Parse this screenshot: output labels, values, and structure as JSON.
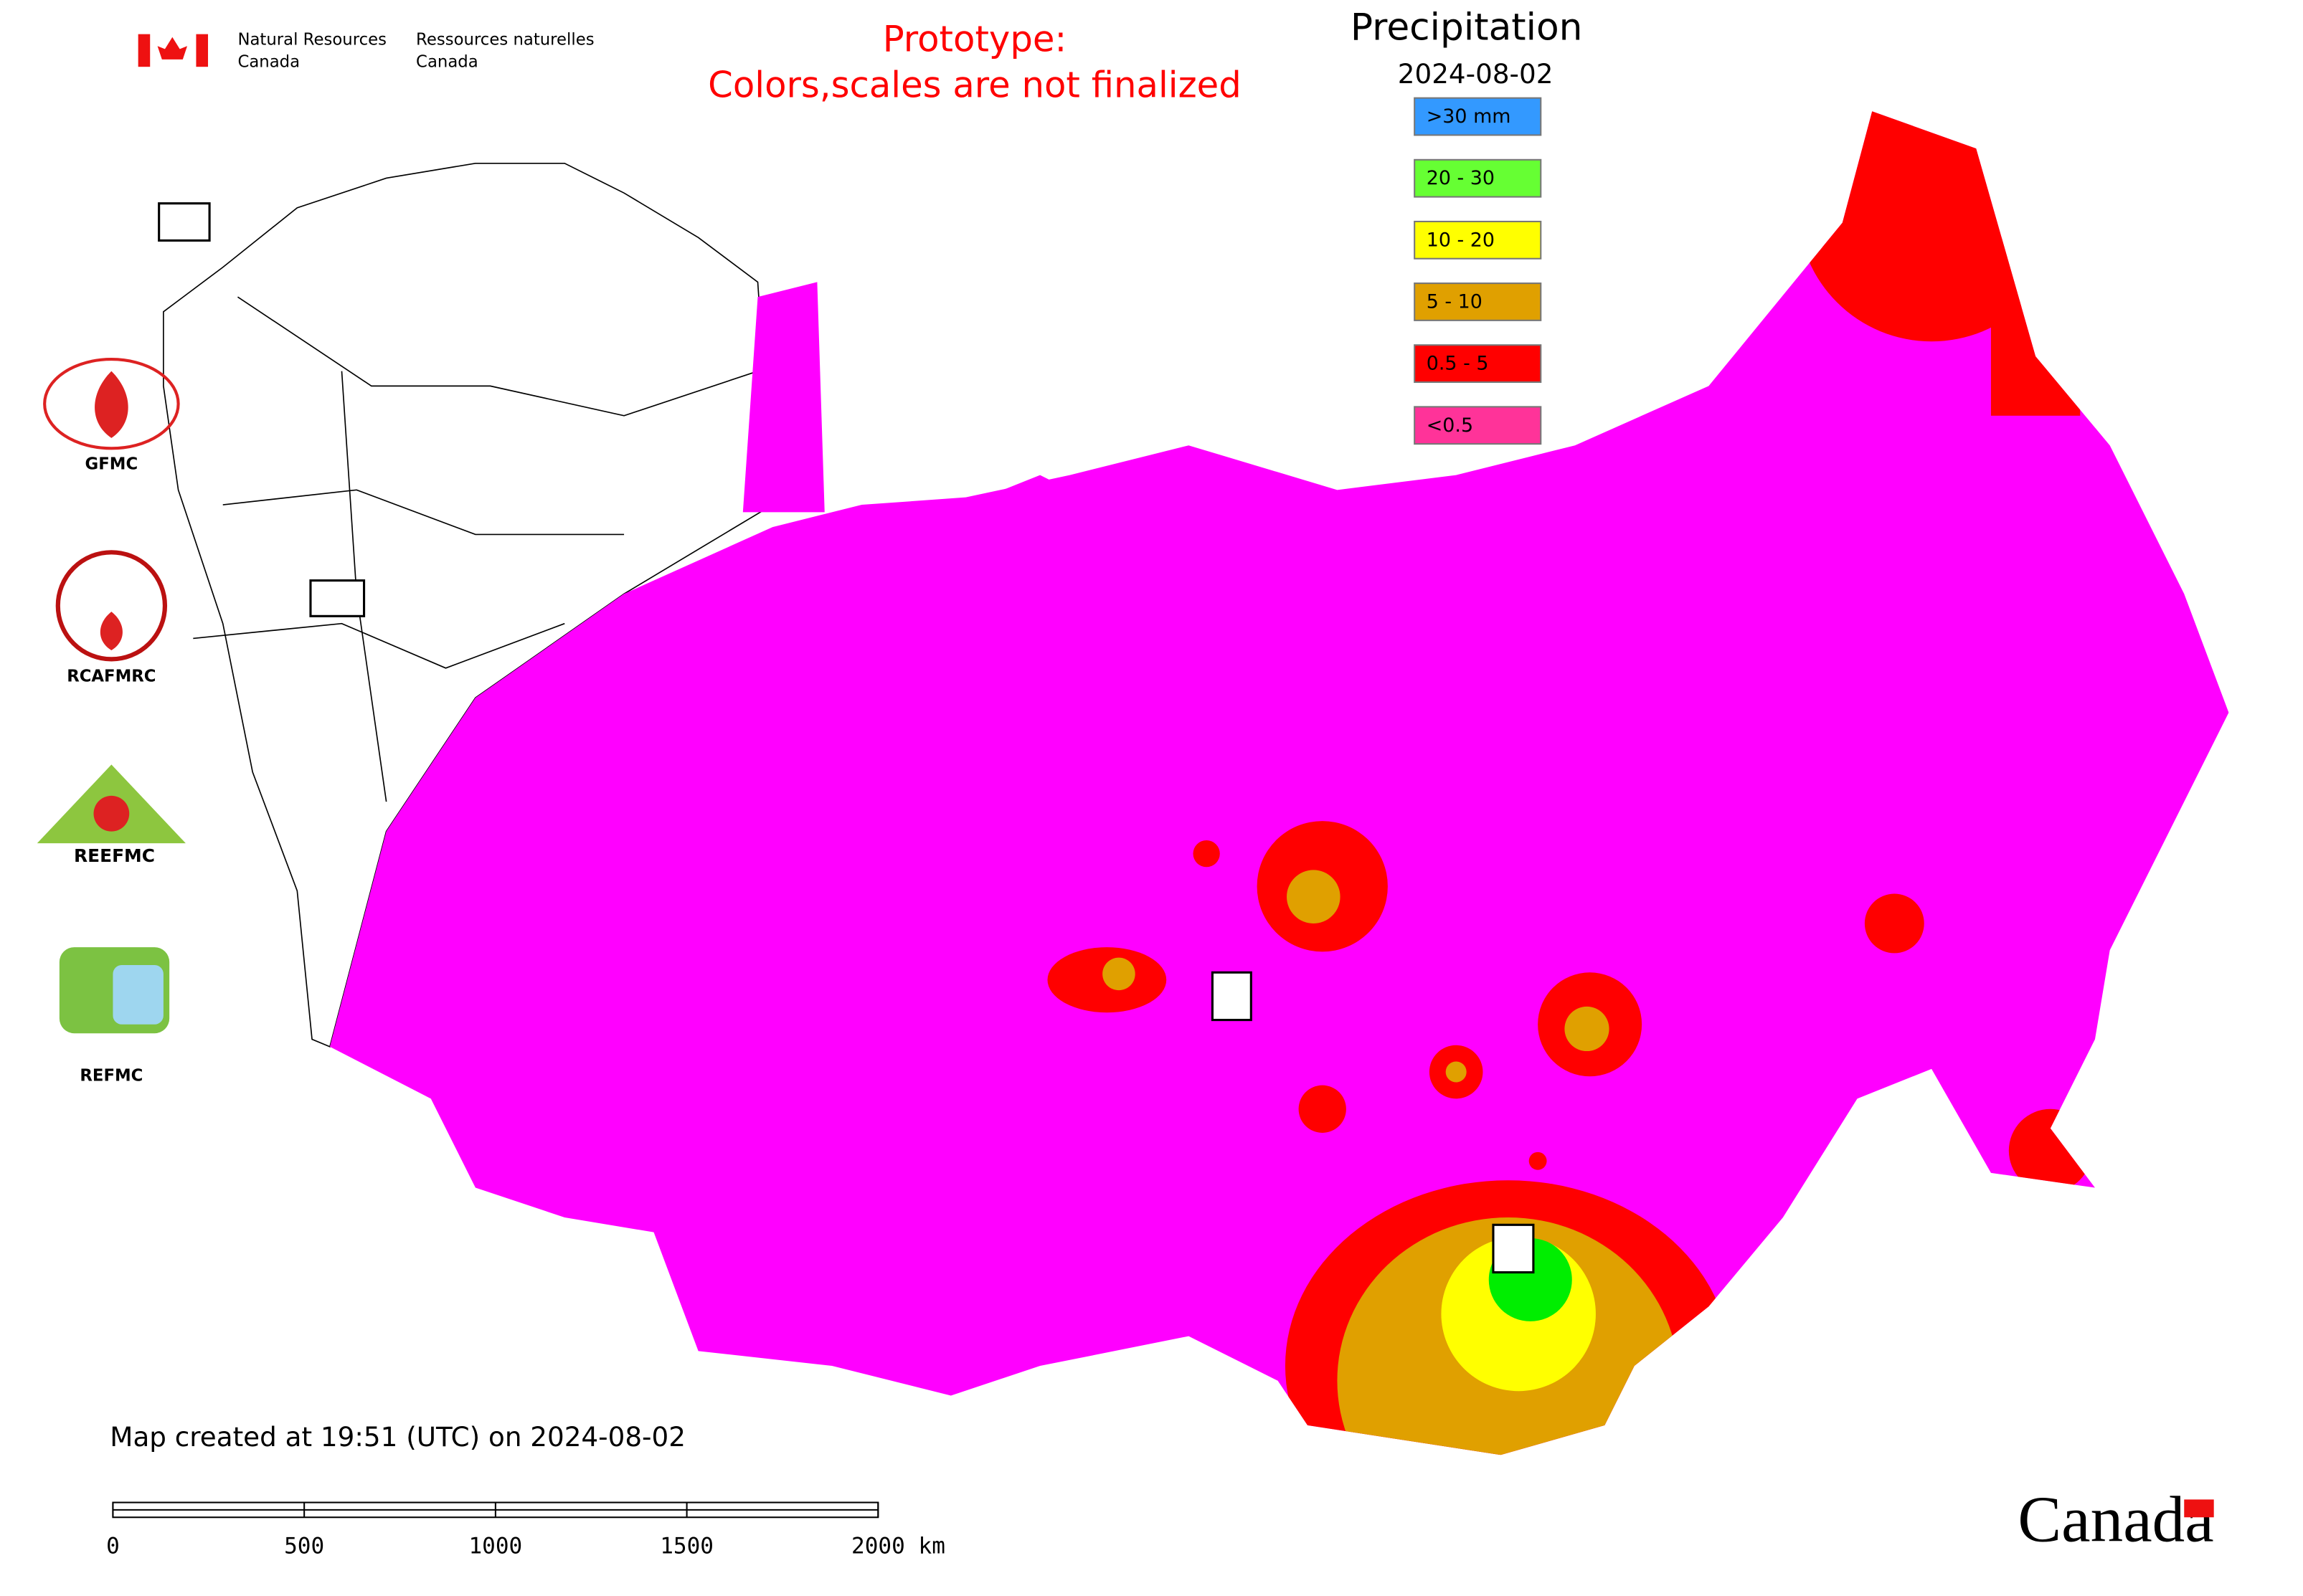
{
  "header": {
    "dept_en": [
      "Natural Resources",
      "Canada"
    ],
    "dept_fr": [
      "Ressources naturelles",
      "Canada"
    ]
  },
  "notice": [
    "Prototype:",
    "Colors,scales are not finalized"
  ],
  "legend": {
    "title": "Precipitation",
    "date": "2024-08-02",
    "items": [
      {
        "label": ">30 mm",
        "color": "#3399ff"
      },
      {
        "label": "20 - 30",
        "color": "#66ff33"
      },
      {
        "label": "10 - 20",
        "color": "#ffff00"
      },
      {
        "label": "5 - 10",
        "color": "#e0a000"
      },
      {
        "label": "0.5 - 5",
        "color": "#ff0000"
      },
      {
        "label": "<0.5",
        "color": "#ff3399"
      }
    ]
  },
  "logos": {
    "gfmc": "GFMC",
    "rcafmrc": "RCAFMRC",
    "reefmc": "REEFMC",
    "refmc": "REFMC"
  },
  "footer": "Map created at 19:51 (UTC) on 2024-08-02",
  "scale_bar": [
    "0",
    "500",
    "1000",
    "1500",
    "2000 km"
  ],
  "wordmark": "Canada"
}
